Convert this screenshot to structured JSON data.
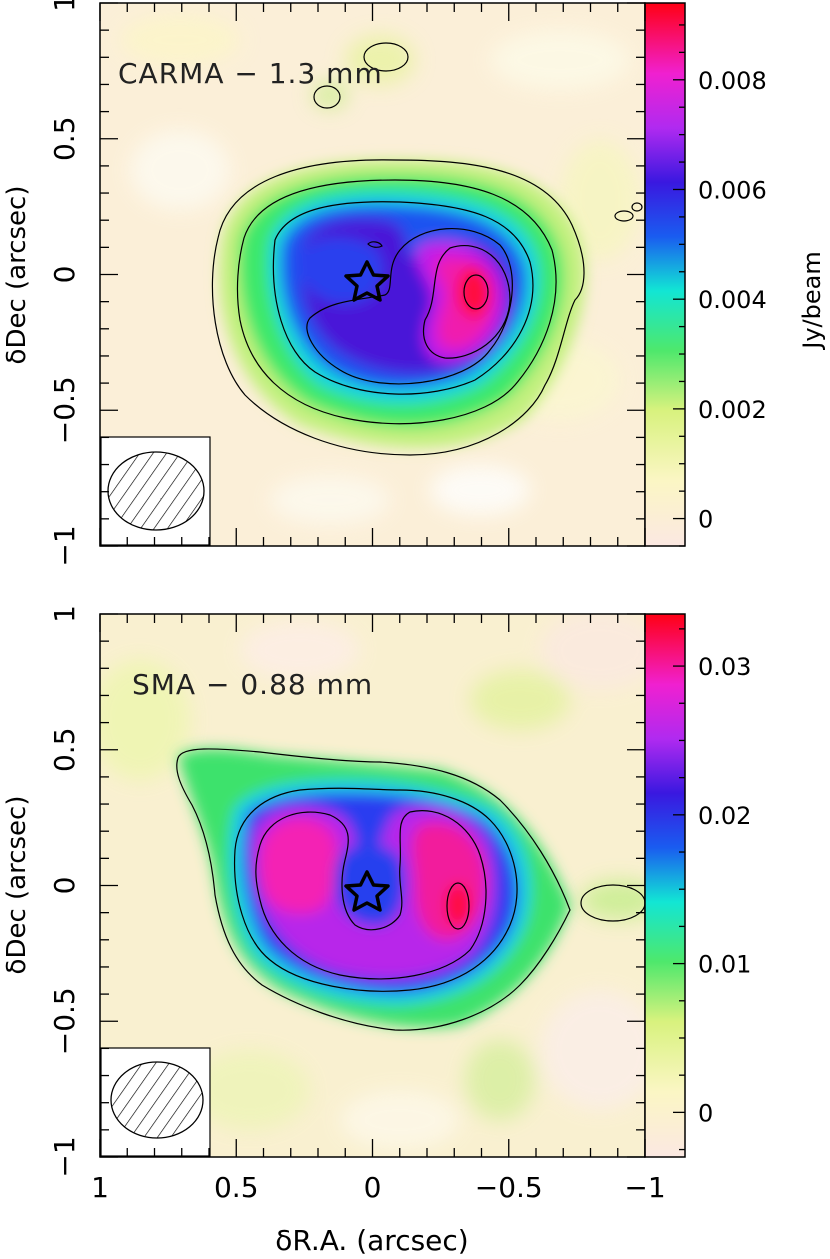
{
  "chart_data": [
    {
      "type": "heatmap",
      "title": "CARMA − 1.3 mm",
      "xlabel": "",
      "ylabel": "δDec (arcsec)",
      "xlim": [
        1,
        -1
      ],
      "ylim": [
        -1,
        1
      ],
      "xticks": [],
      "yticks": [
        "−1",
        "−0.5",
        "0",
        "0.5",
        "1"
      ],
      "colorbar": {
        "label": "Jy/beam",
        "range": [
          -0.0005,
          0.0094
        ],
        "ticks": [
          {
            "value": 0,
            "label": "0"
          },
          {
            "value": 0.002,
            "label": "0.002"
          },
          {
            "value": 0.004,
            "label": "0.004"
          },
          {
            "value": 0.006,
            "label": "0.006"
          },
          {
            "value": 0.008,
            "label": "0.008"
          }
        ]
      },
      "peaks": [
        {
          "x": -0.4,
          "y": -0.07,
          "value": 0.0092
        },
        {
          "x": 0.05,
          "y": -0.02,
          "value": 0.0065
        }
      ],
      "star": {
        "x": 0.01,
        "y": -0.02
      },
      "beam": {
        "major_arcsec": 0.35,
        "minor_arcsec": 0.27,
        "pa_deg": 90
      },
      "grid": false
    },
    {
      "type": "heatmap",
      "title": "SMA − 0.88 mm",
      "xlabel": "δR.A. (arcsec)",
      "ylabel": "δDec (arcsec)",
      "xlim": [
        1,
        -1
      ],
      "ylim": [
        -1,
        1
      ],
      "xticks": [
        "1",
        "0.5",
        "0",
        "−0.5",
        "−1"
      ],
      "yticks": [
        "−1",
        "−0.5",
        "0",
        "0.5",
        "1"
      ],
      "colorbar": {
        "label": "",
        "range": [
          -0.003,
          0.0335
        ],
        "ticks": [
          {
            "value": 0,
            "label": "0"
          },
          {
            "value": 0.01,
            "label": "0.01"
          },
          {
            "value": 0.02,
            "label": "0.02"
          },
          {
            "value": 0.03,
            "label": "0.03"
          }
        ]
      },
      "peaks": [
        {
          "x": -0.31,
          "y": -0.08,
          "value": 0.033
        },
        {
          "x": 0.3,
          "y": 0.0,
          "value": 0.028
        }
      ],
      "star": {
        "x": 0.01,
        "y": -0.02
      },
      "beam": {
        "major_arcsec": 0.35,
        "minor_arcsec": 0.3,
        "pa_deg": 90
      },
      "grid": false
    }
  ]
}
